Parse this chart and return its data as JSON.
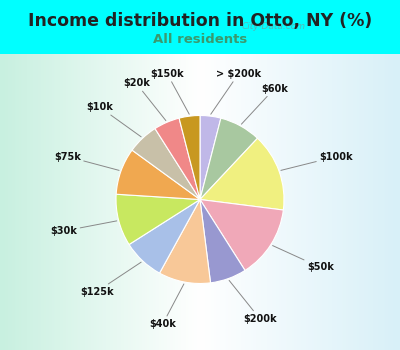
{
  "title": "Income distribution in Otto, NY (%)",
  "subtitle": "All residents",
  "title_color": "#222222",
  "subtitle_color": "#3a9a6e",
  "bg_color_outer": "#00ffff",
  "labels": [
    "> $200k",
    "$60k",
    "$100k",
    "$50k",
    "$200k",
    "$40k",
    "$125k",
    "$30k",
    "$75k",
    "$10k",
    "$20k",
    "$150k"
  ],
  "values": [
    4,
    8,
    15,
    14,
    7,
    10,
    8,
    10,
    9,
    6,
    5,
    4
  ],
  "colors": [
    "#c0b8e8",
    "#a8c8a0",
    "#f0f080",
    "#f0a8b8",
    "#9898d0",
    "#f8c898",
    "#a8c0e8",
    "#c8e860",
    "#f0a850",
    "#c8c0a8",
    "#f08888",
    "#c89820"
  ],
  "watermark": "City-Data.com"
}
